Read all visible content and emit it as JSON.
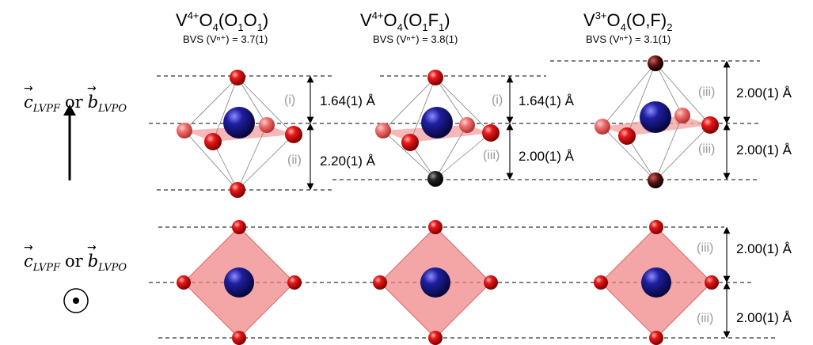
{
  "axis_labels": {
    "c": "c",
    "c_sub": "LVPF",
    "or": "or",
    "b": "b",
    "b_sub": "LVPO",
    "arrow_symbol": "→"
  },
  "structures": [
    {
      "formula": {
        "pre": "V",
        "ox": "4+",
        "mid": "O",
        "n": "4",
        "paren_open": "(O",
        "s1": "1",
        "mid2": "O",
        "s2": "1",
        "close": ")"
      },
      "bvs": "BVS (Vⁿ⁺) = 3.7(1)",
      "top": {
        "roman": "(i)",
        "value": "1.64(1) Å"
      },
      "bottom": {
        "roman": "(ii)",
        "value": "2.20(1) Å"
      }
    },
    {
      "formula": {
        "pre": "V",
        "ox": "4+",
        "mid": "O",
        "n": "4",
        "paren_open": "(O",
        "s1": "1",
        "mid2": "F",
        "s2": "1",
        "close": ")"
      },
      "bvs": "BVS (Vⁿ⁺) = 3.8(1)",
      "top": {
        "roman": "(i)",
        "value": "1.64(1) Å"
      },
      "bottom": {
        "roman": "(iii)",
        "value": "2.00(1) Å"
      }
    },
    {
      "formula": {
        "pre": "V",
        "ox": "3+",
        "mid": "O",
        "n": "4",
        "paren_open": "(O,F)",
        "s1": "",
        "mid2": "",
        "s2": "2",
        "close": ""
      },
      "bvs": "BVS (Vⁿ⁺) = 3.1(1)",
      "top": {
        "roman": "(iii)",
        "value": "2.00(1) Å"
      },
      "bottom": {
        "roman": "(iii)",
        "value": "2.00(1) Å"
      }
    }
  ],
  "lower_panel": {
    "top": {
      "roman": "(iii)",
      "value": "2.00(1) Å"
    },
    "bottom": {
      "roman": "(iii)",
      "value": "2.00(1) Å"
    }
  },
  "colors": {
    "oxygen": "#d10000",
    "fluorine": "#1a1a1a",
    "vanadium": "#1a1a8c",
    "polyhedron": "#f08080"
  }
}
